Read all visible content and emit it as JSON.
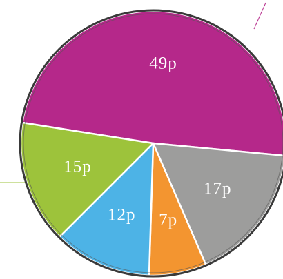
{
  "chart_data": {
    "type": "pie",
    "categories": [
      null,
      null,
      null,
      null,
      null
    ],
    "values": [
      49,
      17,
      7,
      12,
      15
    ],
    "value_labels": [
      "49p",
      "17p",
      "7p",
      "12p",
      "15p"
    ],
    "colors": [
      "#b5288a",
      "#9d9d9c",
      "#f39530",
      "#4db3e6",
      "#9dc33b"
    ]
  }
}
